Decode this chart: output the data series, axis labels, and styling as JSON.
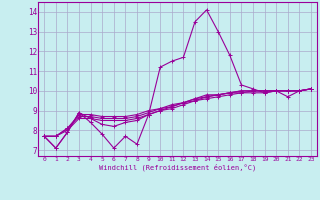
{
  "xlabel": "Windchill (Refroidissement éolien,°C)",
  "bg_color": "#c8eef0",
  "grid_color": "#aaaacc",
  "line_color": "#990099",
  "xlim": [
    -0.5,
    23.5
  ],
  "ylim": [
    6.7,
    14.5
  ],
  "xticks": [
    0,
    1,
    2,
    3,
    4,
    5,
    6,
    7,
    8,
    9,
    10,
    11,
    12,
    13,
    14,
    15,
    16,
    17,
    18,
    19,
    20,
    21,
    22,
    23
  ],
  "yticks": [
    7,
    8,
    9,
    10,
    11,
    12,
    13,
    14
  ],
  "series": [
    [
      7.7,
      7.1,
      7.9,
      8.9,
      8.4,
      7.8,
      7.1,
      7.7,
      7.3,
      8.8,
      11.2,
      11.5,
      11.7,
      13.5,
      14.1,
      13.0,
      11.8,
      10.3,
      10.1,
      9.9,
      10.0,
      9.7,
      10.0,
      10.1
    ],
    [
      7.7,
      7.1,
      7.9,
      8.9,
      8.6,
      8.3,
      8.2,
      8.4,
      8.5,
      8.8,
      9.0,
      9.2,
      9.4,
      9.6,
      9.8,
      9.8,
      9.9,
      10.0,
      10.0,
      10.0,
      10.0,
      10.0,
      10.0,
      10.1
    ],
    [
      7.7,
      7.7,
      8.0,
      8.6,
      8.6,
      8.5,
      8.5,
      8.5,
      8.6,
      8.8,
      9.0,
      9.1,
      9.3,
      9.5,
      9.6,
      9.7,
      9.8,
      9.9,
      9.9,
      9.9,
      10.0,
      10.0,
      10.0,
      10.1
    ],
    [
      7.7,
      7.7,
      8.1,
      8.7,
      8.7,
      8.6,
      8.6,
      8.6,
      8.7,
      8.9,
      9.1,
      9.2,
      9.4,
      9.5,
      9.7,
      9.8,
      9.9,
      9.9,
      10.0,
      10.0,
      10.0,
      10.0,
      10.0,
      10.1
    ],
    [
      7.7,
      7.7,
      8.1,
      8.8,
      8.8,
      8.7,
      8.7,
      8.7,
      8.8,
      9.0,
      9.1,
      9.3,
      9.4,
      9.6,
      9.7,
      9.8,
      9.9,
      10.0,
      10.0,
      10.0,
      10.0,
      10.0,
      10.0,
      10.1
    ]
  ]
}
